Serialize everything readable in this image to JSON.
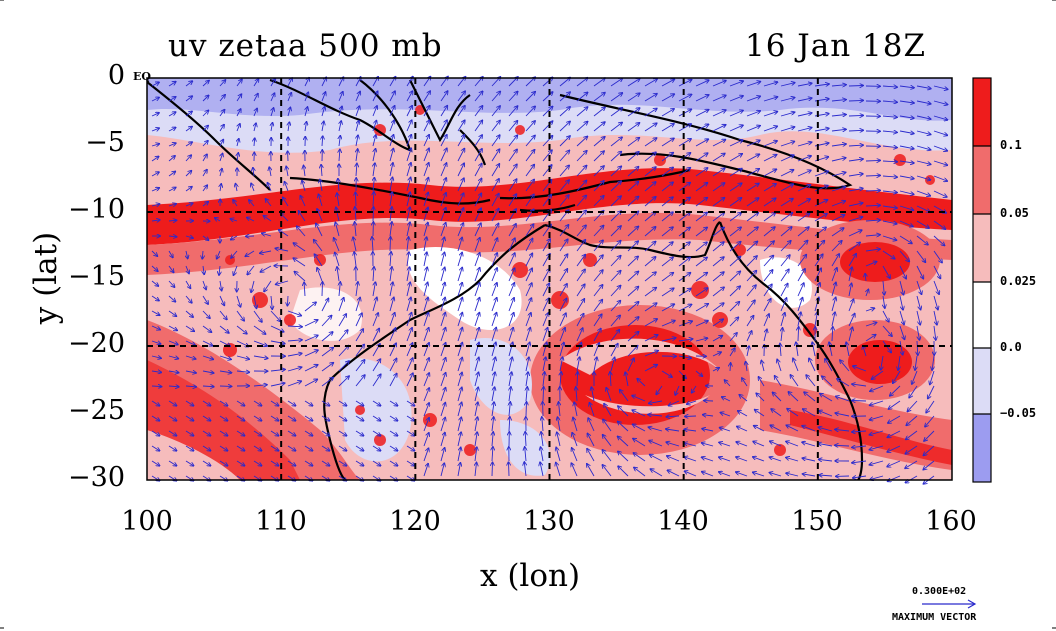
{
  "title_left": "uv zetaa 500 mb",
  "title_right": "16 Jan 18Z",
  "equator_label": "EQ",
  "x_axis": {
    "label": "x (lon)",
    "ticks": [
      "100",
      "110",
      "120",
      "130",
      "140",
      "150",
      "160"
    ],
    "range": [
      100,
      160
    ]
  },
  "y_axis": {
    "label": "y (lat)",
    "ticks": [
      "0",
      "−5",
      "−10",
      "−15",
      "−20",
      "−25",
      "−30"
    ],
    "range": [
      -30,
      0
    ]
  },
  "colorbar": {
    "labels": [
      "0.1",
      "0.05",
      "0.025",
      "0.0",
      "−0.05"
    ],
    "colors": [
      "#ee1c1c",
      "#f06c6c",
      "#f6bcbc",
      "#ffffff",
      "#dcdcf6",
      "#9c9cf0"
    ]
  },
  "vector_key": {
    "value": "0.300E+02",
    "label": "MAXIMUM VECTOR"
  },
  "colors": {
    "vector": "#2a2acc",
    "coast": "#000000"
  }
}
